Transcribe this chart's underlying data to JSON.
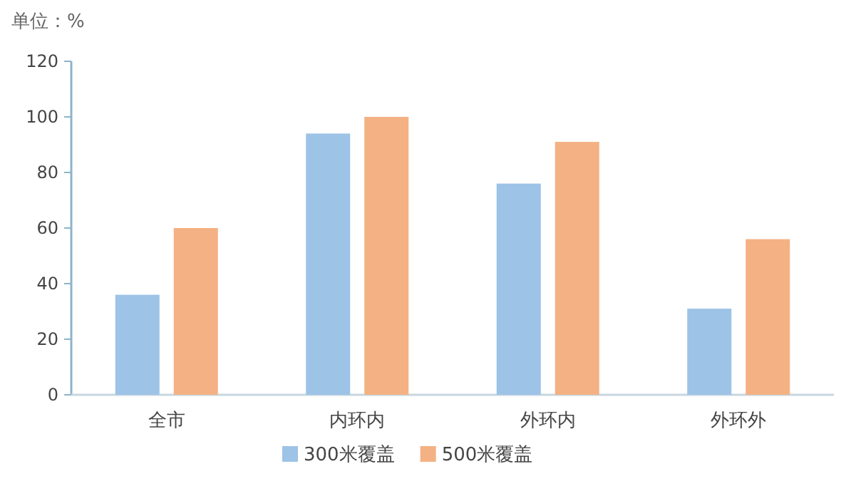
{
  "chart_data": {
    "type": "bar",
    "ylabel": "单位：%",
    "categories": [
      "全市",
      "内环内",
      "外环内",
      "外环外"
    ],
    "series": [
      {
        "name": "300米覆盖",
        "color": "#9dc3e6",
        "values": [
          36,
          94,
          76,
          31
        ]
      },
      {
        "name": "500米覆盖",
        "color": "#f4b183",
        "values": [
          60,
          100,
          91,
          56
        ]
      }
    ],
    "ylim": [
      0,
      120
    ],
    "yticks": [
      0,
      20,
      40,
      60,
      80,
      100,
      120
    ],
    "grid": false,
    "legend": "bottom"
  }
}
